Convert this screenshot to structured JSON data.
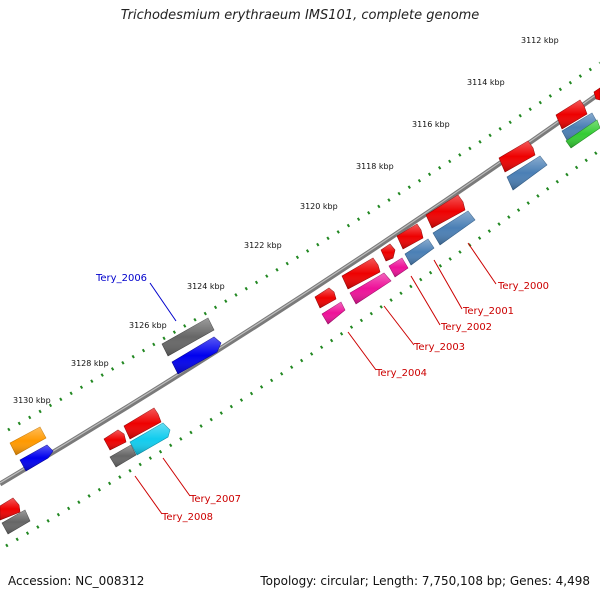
{
  "title": "Trichodesmium erythraeum IMS101, complete genome",
  "footer": {
    "accession": "Accession: NC_008312",
    "topology": "Topology: circular; Length: 7,750,108 bp; Genes: 4,498"
  },
  "ruler_labels": [
    "3112 kbp",
    "3114 kbp",
    "3116 kbp",
    "3118 kbp",
    "3120 kbp",
    "3122 kbp",
    "3124 kbp",
    "3126 kbp",
    "3128 kbp",
    "3130 kbp"
  ],
  "gene_labels": [
    {
      "name": "Tery_2006",
      "color": "#0000cc"
    },
    {
      "name": "Tery_2000",
      "color": "#cc0000"
    },
    {
      "name": "Tery_2001",
      "color": "#cc0000"
    },
    {
      "name": "Tery_2002",
      "color": "#cc0000"
    },
    {
      "name": "Tery_2003",
      "color": "#cc0000"
    },
    {
      "name": "Tery_2004",
      "color": "#cc0000"
    },
    {
      "name": "Tery_2007",
      "color": "#cc0000"
    },
    {
      "name": "Tery_2008",
      "color": "#cc0000"
    }
  ],
  "colors": {
    "red": "#ee0000",
    "blue": "#0000ee",
    "gray": "#666666",
    "steelblue": "#4a7fb5",
    "pink": "#ee1199",
    "cyan": "#11ccee",
    "orange": "#ff9900",
    "green": "#33cc33",
    "backbone": "#808080",
    "ticks": "#228822"
  }
}
